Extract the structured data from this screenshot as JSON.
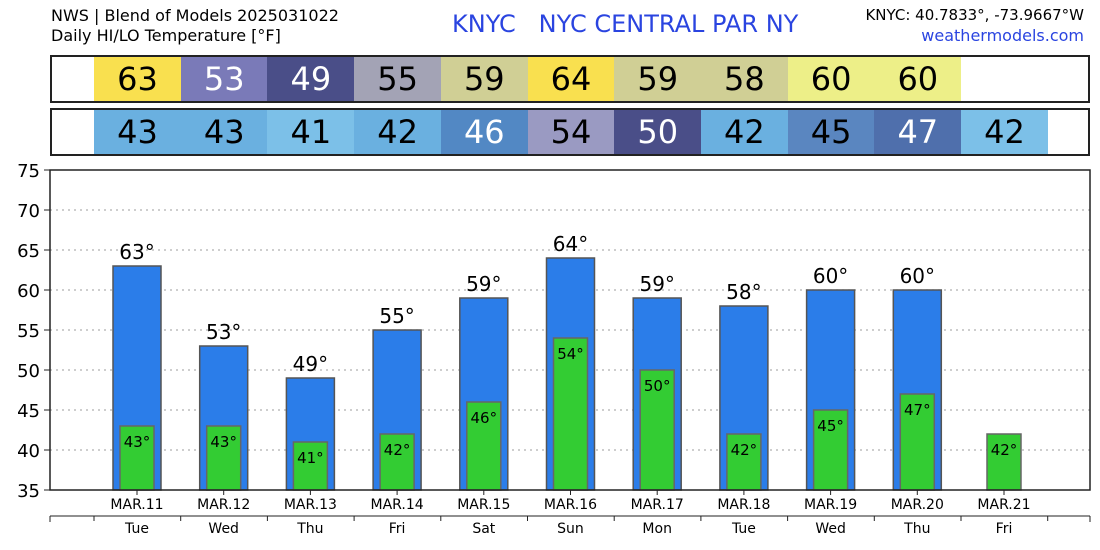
{
  "header": {
    "title_line1": "NWS | Blend of Models 2025031022",
    "title_line2": "Daily HI/LO Temperature [°F]",
    "station": "KNYC   NYC CENTRAL PAR NY",
    "coords": "KNYC: 40.7833°, -73.9667°W",
    "website": "weathermodels.com"
  },
  "hi_strip": [
    {
      "value": "63",
      "color": "#f9e04f",
      "text": "#000000"
    },
    {
      "value": "53",
      "color": "#7a7ab8",
      "text": "#ffffff"
    },
    {
      "value": "49",
      "color": "#4a4e88",
      "text": "#ffffff"
    },
    {
      "value": "55",
      "color": "#a3a3b5",
      "text": "#000000"
    },
    {
      "value": "59",
      "color": "#d0cf95",
      "text": "#000000"
    },
    {
      "value": "64",
      "color": "#f9e04f",
      "text": "#000000"
    },
    {
      "value": "59",
      "color": "#d0cf95",
      "text": "#000000"
    },
    {
      "value": "58",
      "color": "#d0cf95",
      "text": "#000000"
    },
    {
      "value": "60",
      "color": "#edef88",
      "text": "#000000"
    },
    {
      "value": "60",
      "color": "#edef88",
      "text": "#000000"
    }
  ],
  "lo_strip": [
    {
      "value": "43",
      "color": "#6ab0e0",
      "text": "#000000"
    },
    {
      "value": "43",
      "color": "#6ab0e0",
      "text": "#000000"
    },
    {
      "value": "41",
      "color": "#7cc0e8",
      "text": "#000000"
    },
    {
      "value": "42",
      "color": "#6ab0e0",
      "text": "#000000"
    },
    {
      "value": "46",
      "color": "#5288c4",
      "text": "#ffffff"
    },
    {
      "value": "54",
      "color": "#9a9ac2",
      "text": "#000000"
    },
    {
      "value": "50",
      "color": "#4a4e88",
      "text": "#ffffff"
    },
    {
      "value": "42",
      "color": "#6ab0e0",
      "text": "#000000"
    },
    {
      "value": "45",
      "color": "#5a86c0",
      "text": "#000000"
    },
    {
      "value": "47",
      "color": "#4f6fac",
      "text": "#ffffff"
    },
    {
      "value": "42",
      "color": "#7cc0e8",
      "text": "#000000"
    }
  ],
  "chart_data": {
    "type": "bar",
    "categories": [
      "MAR.11",
      "MAR.12",
      "MAR.13",
      "MAR.14",
      "MAR.15",
      "MAR.16",
      "MAR.17",
      "MAR.18",
      "MAR.19",
      "MAR.20",
      "MAR.21"
    ],
    "days": [
      "Tue",
      "Wed",
      "Thu",
      "Fri",
      "Sat",
      "Sun",
      "Mon",
      "Tue",
      "Wed",
      "Thu",
      "Fri"
    ],
    "series": [
      {
        "values": [
          63,
          53,
          49,
          55,
          59,
          64,
          59,
          58,
          60,
          60,
          null
        ],
        "color": "#2b7de9",
        "labels": [
          "63°",
          "53°",
          "49°",
          "55°",
          "59°",
          "64°",
          "59°",
          "58°",
          "60°",
          "60°",
          ""
        ]
      },
      {
        "values": [
          43,
          43,
          41,
          42,
          46,
          54,
          50,
          42,
          45,
          47,
          42
        ],
        "color": "#33cc33",
        "labels": [
          "43°",
          "43°",
          "41°",
          "42°",
          "46°",
          "54°",
          "50°",
          "42°",
          "45°",
          "47°",
          "42°"
        ]
      }
    ],
    "ylim": [
      35,
      75
    ],
    "yticks": [
      "35",
      "40",
      "45",
      "50",
      "55",
      "60",
      "65",
      "70",
      "75"
    ],
    "grid": true
  }
}
